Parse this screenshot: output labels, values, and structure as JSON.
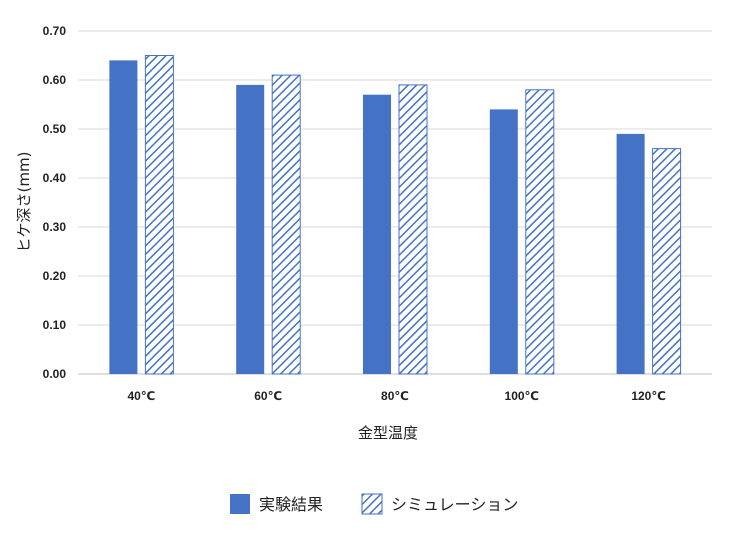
{
  "chart_data": {
    "type": "bar",
    "xlabel": "金型温度",
    "ylabel": "ヒケ深さ(mm)",
    "categories": [
      "40℃",
      "60℃",
      "80℃",
      "100℃",
      "120℃"
    ],
    "series": [
      {
        "name": "実験結果",
        "values": [
          0.64,
          0.59,
          0.57,
          0.54,
          0.49
        ],
        "color": "#4472c4",
        "fill": "solid"
      },
      {
        "name": "シミュレーション",
        "values": [
          0.65,
          0.61,
          0.59,
          0.58,
          0.46
        ],
        "color": "#4472c4",
        "fill": "diagonal-hatch"
      }
    ],
    "yticks": [
      "0.00",
      "0.10",
      "0.20",
      "0.30",
      "0.40",
      "0.50",
      "0.60",
      "0.70"
    ],
    "ylim": [
      0,
      0.7
    ],
    "grid": true,
    "legend_position": "bottom"
  }
}
